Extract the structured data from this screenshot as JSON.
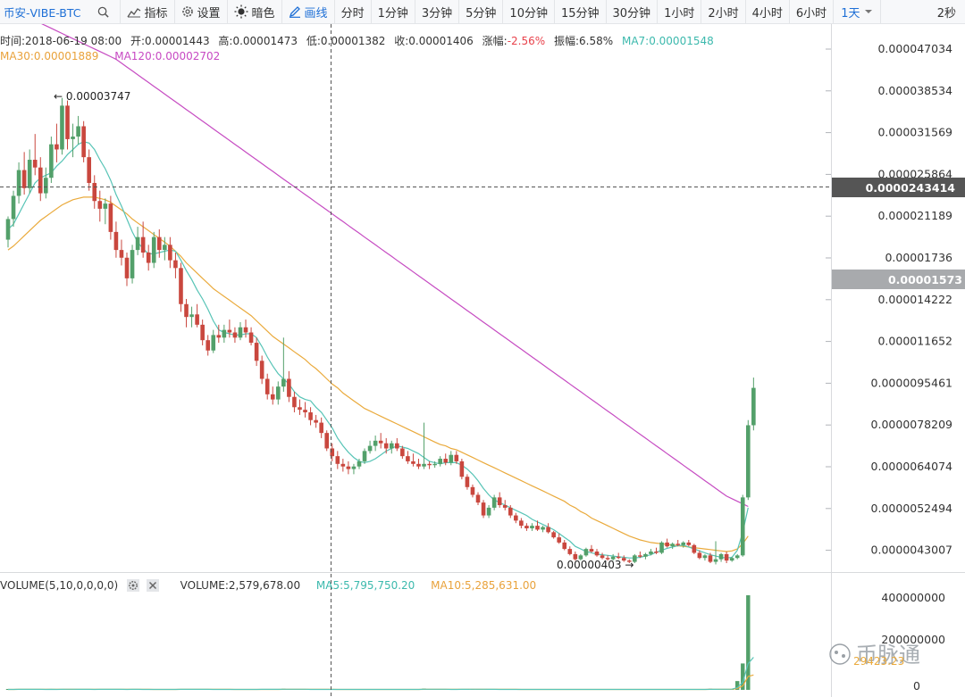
{
  "toolbar": {
    "symbol": "币安-VIBE-BTC",
    "indicator_label": "指标",
    "settings_label": "设置",
    "theme_label": "暗色",
    "draw_label": "画线",
    "intervals": [
      "分时",
      "1分钟",
      "3分钟",
      "5分钟",
      "10分钟",
      "15分钟",
      "30分钟",
      "1小时",
      "2小时",
      "4小时",
      "6小时"
    ],
    "selected_interval": "1天",
    "refresh": "2秒"
  },
  "colors": {
    "up": "#53a06a",
    "down": "#c9473e",
    "ma7": "#57c4b6",
    "ma30": "#eaaa3c",
    "ma120": "#c64cc2",
    "accent": "#1e6fd6"
  },
  "info": {
    "time": "时间:2018-06-19 08:00",
    "open": "开:0.00001443",
    "high": "高:0.00001473",
    "low": "低:0.00001382",
    "close": "收:0.00001406",
    "change_label": "涨幅:",
    "change_value": "-2.56%",
    "amplitude": "振幅:6.58%",
    "ma7": "MA7:0.00001548",
    "ma30": "MA30:0.00001889",
    "ma120": "MA120:0.00002702"
  },
  "volume_info": {
    "title": "VOLUME(5,10,0,0,0,0)",
    "volume": "VOLUME:2,579,678.00",
    "ma5": "MA5:5,795,750.20",
    "ma10": "MA10:5,285,631.00"
  },
  "chart_data": {
    "type": "candlestick",
    "price_ticks": [
      "0.000047034",
      "0.000038534",
      "0.000031569",
      "0.000025864",
      "0.000021189",
      "0.00001736",
      "0.000014222",
      "0.000011652",
      "0.0000095461",
      "0.0000078209",
      "0.0000064074",
      "0.0000052494",
      "0.0000043007"
    ],
    "volume_ticks": [
      "400000000",
      "200000000",
      "0"
    ],
    "crosshair_price": "0.0000243414",
    "last_price": "0.00001573",
    "max_label": "0.00003747",
    "min_label": "0.00000403",
    "volume_overlap_label": "29423.23",
    "watermark": "币脉通",
    "candles": [
      [
        2.7,
        2.88,
        2.64,
        2.86
      ],
      [
        2.86,
        3.08,
        2.8,
        3.04
      ],
      [
        3.04,
        3.3,
        2.98,
        3.24
      ],
      [
        3.24,
        3.38,
        3.05,
        3.1
      ],
      [
        3.1,
        3.4,
        3.06,
        3.32
      ],
      [
        3.32,
        3.52,
        3.2,
        3.26
      ],
      [
        3.26,
        3.34,
        3.0,
        3.06
      ],
      [
        3.06,
        3.26,
        3.02,
        3.18
      ],
      [
        3.18,
        3.5,
        3.14,
        3.44
      ],
      [
        3.44,
        3.6,
        3.3,
        3.4
      ],
      [
        3.4,
        3.8,
        3.36,
        3.74
      ],
      [
        3.74,
        3.78,
        3.4,
        3.48
      ],
      [
        3.48,
        3.6,
        3.34,
        3.5
      ],
      [
        3.5,
        3.66,
        3.44,
        3.58
      ],
      [
        3.58,
        3.62,
        3.3,
        3.34
      ],
      [
        3.34,
        3.4,
        3.08,
        3.14
      ],
      [
        3.14,
        3.2,
        2.94,
        3.0
      ],
      [
        3.0,
        3.08,
        2.84,
        2.94
      ],
      [
        2.94,
        3.02,
        2.82,
        2.98
      ],
      [
        2.98,
        3.04,
        2.7,
        2.76
      ],
      [
        2.76,
        2.84,
        2.56,
        2.62
      ],
      [
        2.62,
        2.7,
        2.5,
        2.56
      ],
      [
        2.56,
        2.6,
        2.34,
        2.4
      ],
      [
        2.4,
        2.66,
        2.36,
        2.62
      ],
      [
        2.62,
        2.8,
        2.58,
        2.72
      ],
      [
        2.72,
        2.84,
        2.56,
        2.6
      ],
      [
        2.6,
        2.66,
        2.46,
        2.52
      ],
      [
        2.52,
        2.76,
        2.48,
        2.72
      ],
      [
        2.72,
        2.78,
        2.56,
        2.62
      ],
      [
        2.62,
        2.72,
        2.54,
        2.66
      ],
      [
        2.66,
        2.72,
        2.48,
        2.54
      ],
      [
        2.54,
        2.6,
        2.4,
        2.48
      ],
      [
        2.48,
        2.52,
        2.14,
        2.2
      ],
      [
        2.2,
        2.24,
        2.02,
        2.1
      ],
      [
        2.1,
        2.18,
        2.02,
        2.12
      ],
      [
        2.12,
        2.2,
        2.02,
        2.04
      ],
      [
        2.04,
        2.08,
        1.88,
        1.92
      ],
      [
        1.92,
        1.96,
        1.8,
        1.84
      ],
      [
        1.84,
        2.0,
        1.82,
        1.96
      ],
      [
        1.96,
        2.04,
        1.9,
        1.94
      ],
      [
        1.94,
        2.04,
        1.9,
        2.0
      ],
      [
        2.0,
        2.08,
        1.94,
        1.98
      ],
      [
        1.98,
        2.02,
        1.9,
        1.94
      ],
      [
        1.94,
        2.06,
        1.92,
        2.02
      ],
      [
        2.02,
        2.08,
        1.94,
        1.98
      ],
      [
        1.98,
        2.02,
        1.88,
        1.9
      ],
      [
        1.9,
        1.94,
        1.72,
        1.76
      ],
      [
        1.76,
        1.8,
        1.58,
        1.62
      ],
      [
        1.62,
        1.66,
        1.46,
        1.5
      ],
      [
        1.5,
        1.56,
        1.42,
        1.46
      ],
      [
        1.46,
        1.6,
        1.42,
        1.56
      ],
      [
        1.56,
        1.94,
        1.52,
        1.62
      ],
      [
        1.62,
        1.68,
        1.44,
        1.48
      ],
      [
        1.48,
        1.52,
        1.36,
        1.4
      ],
      [
        1.4,
        1.46,
        1.34,
        1.38
      ],
      [
        1.38,
        1.44,
        1.32,
        1.36
      ],
      [
        1.36,
        1.4,
        1.26,
        1.3
      ],
      [
        1.3,
        1.34,
        1.24,
        1.28
      ],
      [
        1.28,
        1.32,
        1.16,
        1.2
      ],
      [
        1.2,
        1.22,
        1.06,
        1.08
      ],
      [
        1.08,
        1.12,
        0.98,
        1.02
      ],
      [
        1.02,
        1.06,
        0.92,
        0.96
      ],
      [
        0.96,
        1.0,
        0.9,
        0.94
      ],
      [
        0.94,
        0.98,
        0.88,
        0.92
      ],
      [
        0.92,
        0.96,
        0.88,
        0.94
      ],
      [
        0.94,
        1.0,
        0.92,
        0.98
      ],
      [
        0.98,
        1.08,
        0.96,
        1.06
      ],
      [
        1.06,
        1.14,
        1.04,
        1.1
      ],
      [
        1.1,
        1.18,
        1.06,
        1.14
      ],
      [
        1.14,
        1.2,
        1.08,
        1.12
      ],
      [
        1.12,
        1.16,
        1.04,
        1.08
      ],
      [
        1.08,
        1.14,
        1.04,
        1.12
      ],
      [
        1.12,
        1.16,
        1.06,
        1.08
      ],
      [
        1.08,
        1.1,
        1.0,
        1.02
      ],
      [
        1.02,
        1.06,
        0.96,
        0.98
      ],
      [
        0.98,
        1.04,
        0.94,
        0.96
      ],
      [
        0.96,
        1.0,
        0.92,
        0.94
      ],
      [
        0.94,
        1.28,
        0.92,
        0.96
      ],
      [
        0.96,
        0.98,
        0.92,
        0.95
      ],
      [
        0.95,
        0.98,
        0.93,
        0.96
      ],
      [
        0.96,
        1.02,
        0.94,
        1.0
      ],
      [
        1.0,
        1.04,
        0.95,
        0.97
      ],
      [
        0.97,
        1.06,
        0.95,
        1.03
      ],
      [
        1.03,
        1.06,
        0.96,
        0.98
      ],
      [
        0.98,
        1.0,
        0.84,
        0.86
      ],
      [
        0.86,
        0.88,
        0.76,
        0.78
      ],
      [
        0.78,
        0.8,
        0.7,
        0.72
      ],
      [
        0.72,
        0.74,
        0.64,
        0.66
      ],
      [
        0.66,
        0.68,
        0.54,
        0.56
      ],
      [
        0.56,
        0.64,
        0.54,
        0.62
      ],
      [
        0.62,
        0.72,
        0.6,
        0.7
      ],
      [
        0.7,
        0.74,
        0.62,
        0.64
      ],
      [
        0.64,
        0.68,
        0.6,
        0.62
      ],
      [
        0.62,
        0.64,
        0.54,
        0.56
      ],
      [
        0.56,
        0.58,
        0.5,
        0.52
      ],
      [
        0.52,
        0.54,
        0.46,
        0.48
      ],
      [
        0.48,
        0.5,
        0.44,
        0.46
      ],
      [
        0.46,
        0.5,
        0.44,
        0.48
      ],
      [
        0.48,
        0.52,
        0.44,
        0.45
      ],
      [
        0.45,
        0.48,
        0.43,
        0.47
      ],
      [
        0.47,
        0.5,
        0.42,
        0.43
      ],
      [
        0.43,
        0.44,
        0.38,
        0.39
      ],
      [
        0.39,
        0.42,
        0.34,
        0.35
      ],
      [
        0.35,
        0.37,
        0.29,
        0.3
      ],
      [
        0.3,
        0.32,
        0.25,
        0.26
      ],
      [
        0.26,
        0.28,
        0.21,
        0.22
      ],
      [
        0.22,
        0.26,
        0.21,
        0.25
      ],
      [
        0.25,
        0.31,
        0.24,
        0.3
      ],
      [
        0.3,
        0.33,
        0.27,
        0.28
      ],
      [
        0.28,
        0.3,
        0.24,
        0.25
      ],
      [
        0.25,
        0.27,
        0.22,
        0.23
      ],
      [
        0.23,
        0.25,
        0.21,
        0.22
      ],
      [
        0.22,
        0.26,
        0.21,
        0.24
      ],
      [
        0.24,
        0.27,
        0.22,
        0.23
      ],
      [
        0.23,
        0.25,
        0.2,
        0.21
      ],
      [
        0.21,
        0.22,
        0.19,
        0.2
      ],
      [
        0.2,
        0.26,
        0.19,
        0.25
      ],
      [
        0.25,
        0.28,
        0.23,
        0.24
      ],
      [
        0.24,
        0.27,
        0.22,
        0.26
      ],
      [
        0.26,
        0.3,
        0.25,
        0.28
      ],
      [
        0.28,
        0.31,
        0.26,
        0.27
      ],
      [
        0.27,
        0.36,
        0.26,
        0.35
      ],
      [
        0.35,
        0.38,
        0.31,
        0.32
      ],
      [
        0.32,
        0.35,
        0.3,
        0.34
      ],
      [
        0.34,
        0.37,
        0.32,
        0.33
      ],
      [
        0.33,
        0.36,
        0.31,
        0.35
      ],
      [
        0.35,
        0.37,
        0.32,
        0.33
      ],
      [
        0.33,
        0.34,
        0.26,
        0.27
      ],
      [
        0.27,
        0.29,
        0.22,
        0.23
      ],
      [
        0.23,
        0.26,
        0.21,
        0.25
      ],
      [
        0.25,
        0.27,
        0.19,
        0.2
      ],
      [
        0.2,
        0.36,
        0.18,
        0.22
      ],
      [
        0.22,
        0.27,
        0.2,
        0.26
      ],
      [
        0.26,
        0.28,
        0.19,
        0.21
      ],
      [
        0.21,
        0.24,
        0.2,
        0.23
      ],
      [
        0.23,
        0.26,
        0.22,
        0.25
      ],
      [
        0.25,
        0.72,
        0.24,
        0.7
      ],
      [
        0.7,
        1.3,
        0.68,
        1.26
      ],
      [
        1.26,
        1.63,
        1.22,
        1.55
      ]
    ],
    "volumes": [
      2,
      2,
      3,
      2,
      3,
      2,
      2,
      2,
      3,
      2,
      4,
      3,
      2,
      2,
      2,
      3,
      2,
      3,
      2,
      2,
      3,
      2,
      2,
      3,
      2,
      2,
      2,
      2,
      2,
      2,
      2,
      2,
      4,
      3,
      2,
      2,
      3,
      2,
      2,
      2,
      2,
      2,
      2,
      2,
      2,
      2,
      3,
      3,
      2,
      2,
      2,
      5,
      3,
      2,
      2,
      2,
      2,
      2,
      2,
      3,
      2,
      2,
      2,
      2,
      2,
      2,
      2,
      2,
      2,
      2,
      2,
      2,
      2,
      2,
      2,
      2,
      2,
      6,
      2,
      2,
      2,
      2,
      2,
      2,
      4,
      3,
      3,
      2,
      3,
      2,
      2,
      2,
      2,
      2,
      2,
      2,
      2,
      2,
      2,
      2,
      2,
      2,
      2,
      2,
      2,
      2,
      2,
      2,
      2,
      2,
      2,
      2,
      2,
      2,
      2,
      2,
      2,
      2,
      2,
      2,
      2,
      2,
      2,
      2,
      2,
      2,
      2,
      2,
      2,
      2,
      5,
      2,
      3,
      3,
      3,
      40,
      120,
      430
    ],
    "ma7": [
      2.78,
      2.82,
      2.9,
      2.98,
      3.06,
      3.14,
      3.18,
      3.2,
      3.22,
      3.27,
      3.31,
      3.36,
      3.4,
      3.44,
      3.46,
      3.45,
      3.4,
      3.32,
      3.25,
      3.16,
      3.05,
      2.96,
      2.86,
      2.76,
      2.68,
      2.63,
      2.59,
      2.59,
      2.6,
      2.61,
      2.62,
      2.61,
      2.54,
      2.46,
      2.39,
      2.31,
      2.24,
      2.16,
      2.07,
      2.0,
      1.98,
      1.97,
      1.96,
      1.96,
      1.97,
      1.97,
      1.94,
      1.87,
      1.79,
      1.72,
      1.66,
      1.62,
      1.58,
      1.52,
      1.48,
      1.46,
      1.45,
      1.4,
      1.36,
      1.3,
      1.24,
      1.16,
      1.1,
      1.05,
      1.01,
      0.98,
      0.97,
      0.98,
      1.0,
      1.03,
      1.06,
      1.08,
      1.1,
      1.09,
      1.08,
      1.06,
      1.04,
      1.01,
      0.98,
      0.97,
      0.96,
      0.97,
      0.97,
      0.97,
      0.95,
      0.92,
      0.88,
      0.83,
      0.77,
      0.72,
      0.68,
      0.66,
      0.64,
      0.62,
      0.6,
      0.58,
      0.56,
      0.53,
      0.51,
      0.49,
      0.47,
      0.45,
      0.42,
      0.39,
      0.36,
      0.32,
      0.3,
      0.28,
      0.27,
      0.26,
      0.255,
      0.25,
      0.245,
      0.24,
      0.235,
      0.23,
      0.23,
      0.235,
      0.245,
      0.255,
      0.275,
      0.29,
      0.305,
      0.315,
      0.325,
      0.33,
      0.315,
      0.3,
      0.285,
      0.27,
      0.255,
      0.245,
      0.235,
      0.23,
      0.235,
      0.29,
      0.43,
      0.62
    ],
    "ma30": [
      2.62,
      2.65,
      2.69,
      2.73,
      2.77,
      2.81,
      2.85,
      2.88,
      2.91,
      2.94,
      2.97,
      2.99,
      3.01,
      3.02,
      3.03,
      3.03,
      3.03,
      3.02,
      3.01,
      2.99,
      2.96,
      2.93,
      2.9,
      2.86,
      2.83,
      2.8,
      2.77,
      2.74,
      2.71,
      2.68,
      2.65,
      2.61,
      2.57,
      2.52,
      2.48,
      2.44,
      2.4,
      2.36,
      2.32,
      2.29,
      2.26,
      2.23,
      2.2,
      2.17,
      2.14,
      2.11,
      2.07,
      2.03,
      1.99,
      1.95,
      1.92,
      1.89,
      1.86,
      1.83,
      1.8,
      1.77,
      1.73,
      1.7,
      1.66,
      1.62,
      1.58,
      1.55,
      1.51,
      1.48,
      1.45,
      1.42,
      1.39,
      1.37,
      1.35,
      1.33,
      1.31,
      1.29,
      1.27,
      1.25,
      1.23,
      1.21,
      1.19,
      1.17,
      1.15,
      1.13,
      1.11,
      1.1,
      1.08,
      1.07,
      1.05,
      1.03,
      1.01,
      0.99,
      0.97,
      0.95,
      0.93,
      0.91,
      0.89,
      0.87,
      0.85,
      0.83,
      0.81,
      0.79,
      0.77,
      0.75,
      0.73,
      0.71,
      0.69,
      0.67,
      0.64,
      0.62,
      0.59,
      0.57,
      0.54,
      0.52,
      0.5,
      0.48,
      0.46,
      0.44,
      0.42,
      0.4,
      0.385,
      0.37,
      0.36,
      0.35,
      0.345,
      0.34,
      0.335,
      0.33,
      0.325,
      0.32,
      0.315,
      0.31,
      0.305,
      0.3,
      0.295,
      0.29,
      0.285,
      0.28,
      0.285,
      0.3,
      0.34,
      0.4
    ],
    "ma120": [
      4.5,
      4.48,
      4.46,
      4.44,
      4.42,
      4.4,
      4.38,
      4.36,
      4.34,
      4.32,
      4.3,
      4.28,
      4.26,
      4.24,
      4.22,
      4.2,
      4.18,
      4.16,
      4.14,
      4.12,
      4.1,
      4.07,
      4.04,
      4.01,
      3.98,
      3.95,
      3.92,
      3.89,
      3.86,
      3.83,
      3.8,
      3.77,
      3.74,
      3.71,
      3.68,
      3.65,
      3.62,
      3.59,
      3.56,
      3.53,
      3.5,
      3.47,
      3.44,
      3.41,
      3.38,
      3.35,
      3.32,
      3.29,
      3.26,
      3.23,
      3.2,
      3.17,
      3.14,
      3.11,
      3.08,
      3.05,
      3.02,
      2.99,
      2.96,
      2.93,
      2.9,
      2.87,
      2.84,
      2.81,
      2.78,
      2.75,
      2.72,
      2.69,
      2.66,
      2.63,
      2.6,
      2.57,
      2.54,
      2.51,
      2.48,
      2.45,
      2.42,
      2.39,
      2.36,
      2.33,
      2.3,
      2.27,
      2.24,
      2.21,
      2.18,
      2.15,
      2.12,
      2.09,
      2.06,
      2.03,
      2.0,
      1.97,
      1.94,
      1.91,
      1.88,
      1.85,
      1.82,
      1.79,
      1.76,
      1.73,
      1.7,
      1.67,
      1.64,
      1.61,
      1.58,
      1.55,
      1.52,
      1.49,
      1.46,
      1.43,
      1.4,
      1.37,
      1.34,
      1.31,
      1.28,
      1.25,
      1.22,
      1.19,
      1.16,
      1.13,
      1.1,
      1.07,
      1.04,
      1.01,
      0.98,
      0.95,
      0.92,
      0.89,
      0.86,
      0.83,
      0.8,
      0.77,
      0.74,
      0.71,
      0.69,
      0.67,
      0.65,
      0.63
    ]
  }
}
